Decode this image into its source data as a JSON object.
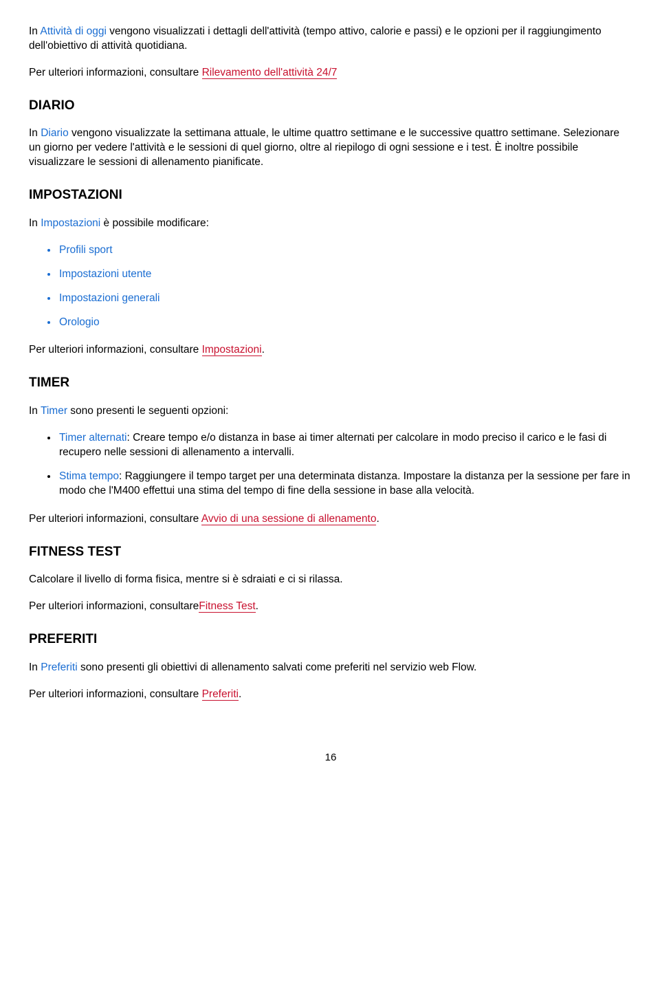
{
  "colors": {
    "emphasis": "#1a6dd2",
    "link": "#c8102e",
    "text": "#000000",
    "background": "#ffffff"
  },
  "intro": {
    "prefix": "In ",
    "emph": "Attività di oggi",
    "rest": " vengono visualizzati i dettagli dell'attività (tempo attivo, calorie e passi) e le opzioni per il raggiungimento dell'obiettivo di attività quotidiana."
  },
  "intro_more": {
    "lead": "Per ulteriori informazioni, consultare ",
    "link": "Rilevamento dell'attività 24/7"
  },
  "diario": {
    "heading": "DIARIO",
    "p": {
      "prefix": "In ",
      "emph": "Diario",
      "rest": " vengono visualizzate la settimana attuale, le ultime quattro settimane e le successive quattro settimane. Selezionare un giorno per vedere l'attività e le sessioni di quel giorno, oltre al riepilogo di ogni sessione e i test. È inoltre possibile visualizzare le sessioni di allenamento pianificate."
    }
  },
  "impostazioni": {
    "heading": "IMPOSTAZIONI",
    "intro_prefix": "In ",
    "intro_emph": "Impostazioni",
    "intro_rest": " è possibile modificare:",
    "items": [
      "Profili sport",
      "Impostazioni utente",
      "Impostazioni generali",
      "Orologio"
    ],
    "more_lead": "Per ulteriori informazioni, consultare ",
    "more_link": "Impostazioni",
    "more_tail": "."
  },
  "timer": {
    "heading": "TIMER",
    "intro_prefix": "In ",
    "intro_emph": "Timer",
    "intro_rest": " sono presenti le seguenti opzioni:",
    "items": [
      {
        "lead": "Timer alternati",
        "rest": ": Creare tempo e/o distanza in base ai timer alternati per calcolare in modo preciso il carico e le fasi di recupero nelle sessioni di allenamento a intervalli."
      },
      {
        "lead": "Stima tempo",
        "rest": ": Raggiungere il tempo target per una determinata distanza. Impostare la distanza per la sessione per fare in modo che l'M400 effettui una stima del tempo di fine della sessione in base alla velocità."
      }
    ],
    "more_lead": "Per ulteriori informazioni, consultare ",
    "more_link": "Avvio di una sessione di allenamento",
    "more_tail": "."
  },
  "fitness": {
    "heading": "FITNESS TEST",
    "text": "Calcolare il livello di forma fisica, mentre si è sdraiati e ci si rilassa.",
    "more_lead": "Per ulteriori informazioni, consultare",
    "more_link": "Fitness Test",
    "more_tail": "."
  },
  "preferiti": {
    "heading": "PREFERITI",
    "p": {
      "prefix": "In ",
      "emph": "Preferiti",
      "rest": " sono presenti gli obiettivi di allenamento salvati come preferiti nel servizio web Flow."
    },
    "more_lead": "Per ulteriori informazioni, consultare ",
    "more_link": "Preferiti",
    "more_tail": "."
  },
  "page_number": "16"
}
